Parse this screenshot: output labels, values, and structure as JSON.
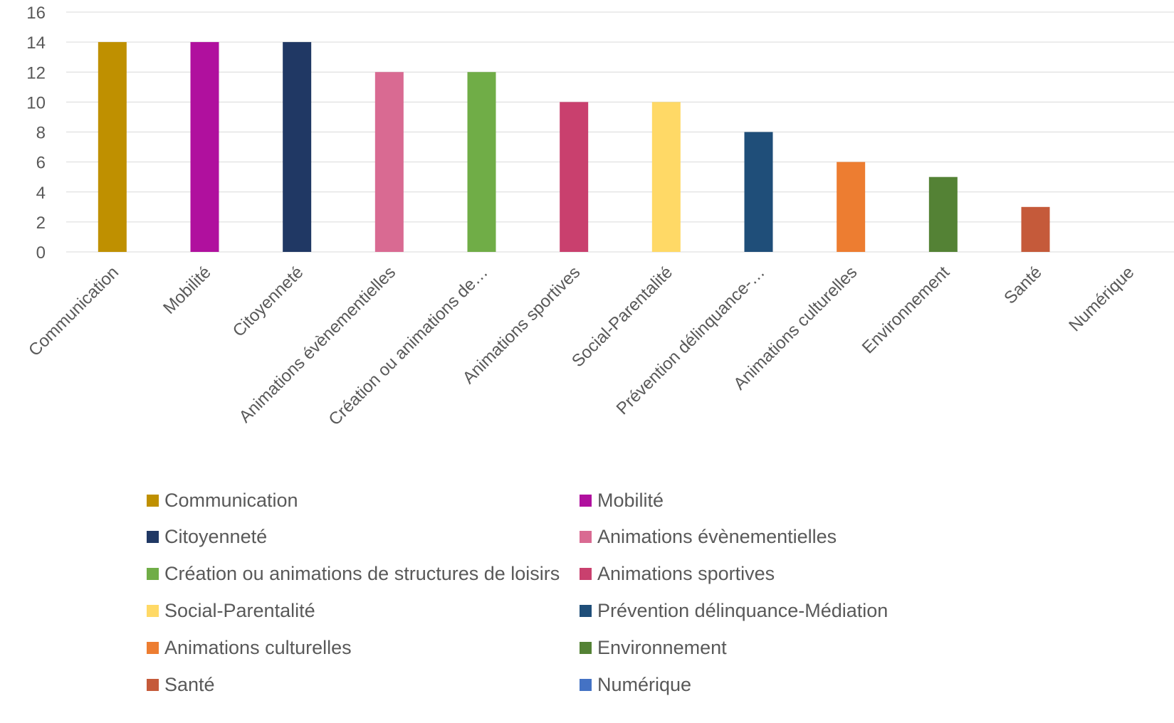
{
  "chart_data": {
    "type": "bar",
    "title": "",
    "xlabel": "",
    "ylabel": "",
    "ylim": [
      0,
      16
    ],
    "yticks": [
      0,
      2,
      4,
      6,
      8,
      10,
      12,
      14,
      16
    ],
    "grid": true,
    "legend_position": "bottom",
    "categories": [
      "Communication",
      "Mobilité",
      "Citoyenneté",
      "Animations évènementielles",
      "Création ou animations de…",
      "Animations sportives",
      "Social-Parentalité",
      "Prévention délinquance-…",
      "Animations culturelles",
      "Environnement",
      "Santé",
      "Numérique"
    ],
    "values": [
      14,
      14,
      14,
      12,
      12,
      10,
      10,
      8,
      6,
      5,
      3,
      0
    ],
    "colors": [
      "#BF9000",
      "#B0109E",
      "#203864",
      "#D96A92",
      "#70AD47",
      "#C9406E",
      "#FFD966",
      "#1F4E79",
      "#ED7D31",
      "#548235",
      "#C55A3A",
      "#4472C4"
    ],
    "legend": [
      "Communication",
      "Mobilité",
      "Citoyenneté",
      "Animations évènementielles",
      "Création ou animations de structures de loisirs",
      "Animations sportives",
      "Social-Parentalité",
      "Prévention délinquance-Médiation",
      "Animations culturelles",
      "Environnement",
      "Santé",
      "Numérique"
    ]
  }
}
